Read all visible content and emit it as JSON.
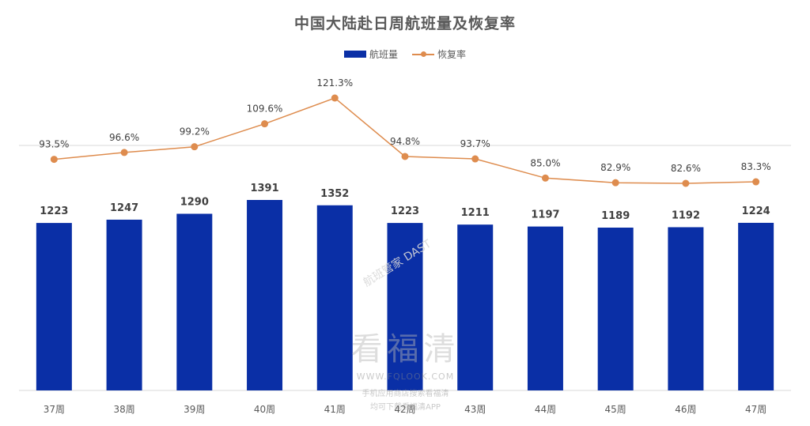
{
  "title": "中国大陆赴日周航班量及恢复率",
  "legend": {
    "bar_label": "航班量",
    "line_label": "恢复率"
  },
  "colors": {
    "bar": "#0a2fa6",
    "line": "#de8c4e",
    "gridline": "#d9d9d9",
    "text": "#595959",
    "bar_label": "#404040"
  },
  "watermarks": {
    "brand_cn": "看福清",
    "site": "WWW.FQLOOK.COM",
    "slogan_line1": "手机应用商店搜索看福清",
    "slogan_line2": "均可下载看福清APP",
    "diagonal": "航班管家 DAST"
  },
  "chart_data": {
    "type": "bar",
    "title": "中国大陆赴日周航班量及恢复率",
    "categories": [
      "37周",
      "38周",
      "39周",
      "40周",
      "41周",
      "42周",
      "43周",
      "44周",
      "45周",
      "46周",
      "47周"
    ],
    "series": [
      {
        "name": "航班量",
        "type": "bar",
        "values": [
          1223,
          1247,
          1290,
          1391,
          1352,
          1223,
          1211,
          1197,
          1189,
          1192,
          1224
        ],
        "labels": [
          "1223",
          "1247",
          "1290",
          "1391",
          "1352",
          "1223",
          "1211",
          "1197",
          "1189",
          "1192",
          "1224"
        ]
      },
      {
        "name": "恢复率",
        "type": "line",
        "values": [
          93.5,
          96.6,
          99.2,
          109.6,
          121.3,
          94.8,
          93.7,
          85.0,
          82.9,
          82.6,
          83.3
        ],
        "labels": [
          "93.5%",
          "96.6%",
          "99.2%",
          "109.6%",
          "121.3%",
          "94.8%",
          "93.7%",
          "85.0%",
          "82.9%",
          "82.6%",
          "83.3%"
        ]
      }
    ],
    "xlabel": "",
    "ylabel": "",
    "legend_position": "top",
    "grid": false
  }
}
